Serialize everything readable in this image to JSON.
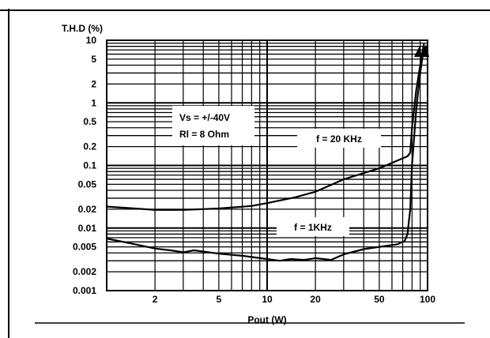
{
  "chart_data": {
    "type": "line",
    "title": "",
    "xlabel": "Pout (W)",
    "ylabel": "T.H.D (%)",
    "x_scale": "log",
    "y_scale": "log",
    "xlim": [
      1,
      100
    ],
    "ylim": [
      0.001,
      10
    ],
    "grid": true,
    "x_ticks": [
      {
        "value": 2,
        "label": "2"
      },
      {
        "value": 5,
        "label": "5"
      },
      {
        "value": 10,
        "label": "10"
      },
      {
        "value": 20,
        "label": "20"
      },
      {
        "value": 50,
        "label": "50"
      },
      {
        "value": 100,
        "label": "100"
      }
    ],
    "y_ticks": [
      {
        "value": 10,
        "label": "10"
      },
      {
        "value": 5,
        "label": "5"
      },
      {
        "value": 2,
        "label": "2"
      },
      {
        "value": 1,
        "label": "1"
      },
      {
        "value": 0.5,
        "label": "0.5"
      },
      {
        "value": 0.2,
        "label": "0.2"
      },
      {
        "value": 0.1,
        "label": "0.1"
      },
      {
        "value": 0.05,
        "label": "0.05"
      },
      {
        "value": 0.02,
        "label": "0.02"
      },
      {
        "value": 0.01,
        "label": "0.01"
      },
      {
        "value": 0.005,
        "label": "0.005"
      },
      {
        "value": 0.002,
        "label": "0.002"
      },
      {
        "value": 0.001,
        "label": "0.001"
      }
    ],
    "series": [
      {
        "name": "f = 20 KHz",
        "x": [
          1,
          1.5,
          2,
          3,
          5,
          8,
          10,
          15,
          20,
          30,
          50,
          75,
          78,
          80,
          85,
          90,
          95
        ],
        "y": [
          0.022,
          0.0205,
          0.0195,
          0.0195,
          0.0205,
          0.0225,
          0.025,
          0.031,
          0.038,
          0.06,
          0.09,
          0.14,
          0.16,
          0.4,
          1.6,
          4.0,
          9.0
        ]
      },
      {
        "name": "f = 1KHz",
        "x": [
          1,
          1.5,
          2,
          2.5,
          3,
          3.5,
          5,
          7,
          10,
          12,
          14,
          17,
          20,
          25,
          30,
          40,
          50,
          65,
          72,
          75,
          78,
          80,
          85,
          90,
          95
        ],
        "y": [
          0.0068,
          0.0055,
          0.0047,
          0.0044,
          0.0041,
          0.0044,
          0.0039,
          0.0036,
          0.0032,
          0.003,
          0.0032,
          0.0031,
          0.0033,
          0.0031,
          0.0038,
          0.0046,
          0.005,
          0.0055,
          0.0062,
          0.008,
          0.02,
          0.1,
          0.8,
          3.0,
          8.0
        ]
      }
    ],
    "annotations": [
      {
        "lines": [
          "Vs = +/-40V",
          "Rl = 8 Ohm"
        ]
      },
      {
        "text": "f = 20 KHz"
      },
      {
        "text": "f = 1KHz"
      }
    ]
  }
}
